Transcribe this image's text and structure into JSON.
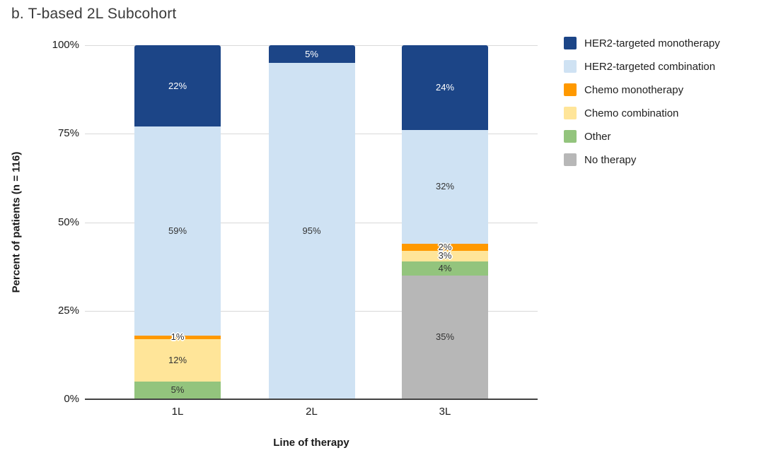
{
  "title": "b. T-based 2L Subcohort",
  "chart_data": {
    "type": "bar",
    "stacked": true,
    "title": "b. T-based 2L Subcohort",
    "xlabel": "Line of therapy",
    "ylabel": "Percent of patients (n = 116)",
    "categories": [
      "1L",
      "2L",
      "3L"
    ],
    "series": [
      {
        "name": "HER2-targeted monotherapy",
        "color": "#1c4587",
        "values": [
          22,
          5,
          24
        ]
      },
      {
        "name": "HER2-targeted combination",
        "color": "#cfe2f3",
        "values": [
          59,
          95,
          32
        ]
      },
      {
        "name": "Chemo monotherapy",
        "color": "#ff9900",
        "values": [
          1,
          0,
          2
        ]
      },
      {
        "name": "Chemo combination",
        "color": "#ffe599",
        "values": [
          12,
          0,
          3
        ]
      },
      {
        "name": "Other",
        "color": "#93c47d",
        "values": [
          5,
          0,
          4
        ]
      },
      {
        "name": "No therapy",
        "color": "#b7b7b7",
        "values": [
          0,
          0,
          35
        ]
      }
    ],
    "ylim": [
      0,
      100
    ],
    "yticks": [
      "0%",
      "25%",
      "50%",
      "75%",
      "100%"
    ],
    "value_suffix": "%",
    "grid": true,
    "legend_position": "right",
    "colors": {
      "gridline": "#d9d9d9",
      "axis_line": "#424242",
      "label_dark": "#333333",
      "label_light": "#ffffff"
    }
  }
}
